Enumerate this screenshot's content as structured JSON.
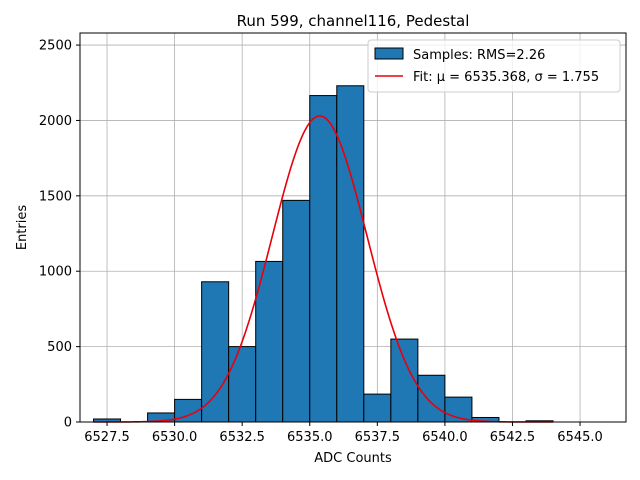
{
  "chart_data": {
    "type": "bar",
    "title": "Run 599, channel116, Pedestal",
    "xlabel": "ADC Counts",
    "ylabel": "Entries",
    "xlim": [
      6526.5,
      6546.7
    ],
    "ylim": [
      0,
      2580
    ],
    "xticks": [
      6527.5,
      6530.0,
      6532.5,
      6535.0,
      6537.5,
      6540.0,
      6542.5,
      6545.0
    ],
    "xtick_labels": [
      "6527.5",
      "6530.0",
      "6532.5",
      "6535.0",
      "6537.5",
      "6540.0",
      "6542.5",
      "6545.0"
    ],
    "yticks": [
      0,
      500,
      1000,
      1500,
      2000,
      2500
    ],
    "ytick_labels": [
      "0",
      "500",
      "1000",
      "1500",
      "2000",
      "2500"
    ],
    "grid": true,
    "legend_position": "top-right",
    "histogram": {
      "name": "Samples: RMS=2.26",
      "color": "#1f77b4",
      "edge_color": "#000000",
      "bin_edges": [
        6527.0,
        6528.0,
        6529.0,
        6530.0,
        6531.0,
        6532.0,
        6533.0,
        6534.0,
        6535.0,
        6536.0,
        6537.0,
        6538.0,
        6539.0,
        6540.0,
        6541.0,
        6542.0,
        6543.0,
        6544.0,
        6545.0,
        6546.0
      ],
      "counts": [
        20,
        0,
        60,
        150,
        930,
        500,
        1065,
        1470,
        2165,
        2230,
        185,
        550,
        310,
        165,
        30,
        0,
        8,
        0,
        0
      ]
    },
    "fit": {
      "name": "Fit: μ = 6535.368, σ = 1.755",
      "color": "#e8000b",
      "mu": 6535.368,
      "sigma": 1.755,
      "amplitude": 2030,
      "x_range": [
        6527.0,
        6544.0
      ]
    }
  }
}
